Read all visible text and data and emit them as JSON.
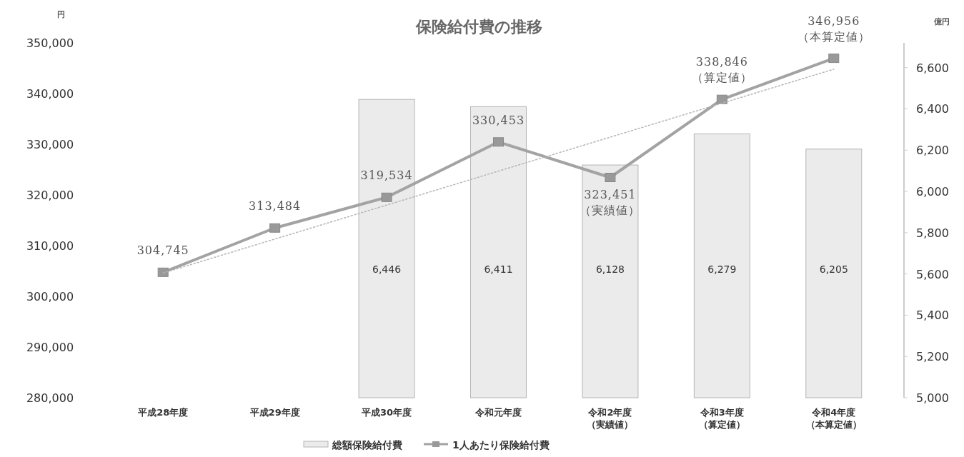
{
  "chart_data": {
    "type": "bar",
    "title": "保険給付費の推移",
    "ylabel": "円",
    "y2label": "億円",
    "categories": [
      "平成28年度",
      "平成29年度",
      "平成30年度",
      "令和元年度",
      "令和2年度（実績値）",
      "令和3年度（算定値）",
      "令和4年度（本算定値）"
    ],
    "series": [
      {
        "name": "総額保険給付費",
        "axis": "y2",
        "color": "#ebebeb",
        "values": [
          null,
          null,
          6446,
          6411,
          6128,
          6279,
          6205
        ],
        "value_labels": [
          null,
          null,
          "6,446",
          "6,411",
          "6,128",
          "6,279",
          "6,205"
        ]
      },
      {
        "name": "1人あたり保険給付費",
        "type": "line",
        "axis": "y",
        "color": "#a3a3a3",
        "marker": "square",
        "line_style": "solid",
        "values": [
          304745,
          313484,
          319534,
          330453,
          323451,
          338846,
          346956
        ],
        "value_labels": [
          "304,745",
          "313,484",
          "319,534",
          "330,453",
          "323,451（実績値）",
          "338,846（算定値）",
          "346,956（本算定値）"
        ]
      },
      {
        "type": "line",
        "axis": "y",
        "color": "#b5b5b5",
        "marker": "none",
        "line_style": "dotted",
        "values": [
          304600,
          311300,
          318000,
          324700,
          331400,
          338100,
          344800
        ]
      }
    ],
    "ylim": [
      280000,
      350000
    ],
    "yticks": [
      {
        "value": 280000,
        "label": "280,000"
      },
      {
        "value": 290000,
        "label": "290,000"
      },
      {
        "value": 300000,
        "label": "300,000"
      },
      {
        "value": 310000,
        "label": "310,000"
      },
      {
        "value": 320000,
        "label": "320,000"
      },
      {
        "value": 330000,
        "label": "330,000"
      },
      {
        "value": 340000,
        "label": "340,000"
      },
      {
        "value": 350000,
        "label": "350,000"
      }
    ],
    "y2lim": [
      5000,
      6720
    ],
    "y2ticks": [
      {
        "value": 5000,
        "label": "5,000"
      },
      {
        "value": 5200,
        "label": "5,200"
      },
      {
        "value": 5400,
        "label": "5,400"
      },
      {
        "value": 5600,
        "label": "5,600"
      },
      {
        "value": 5800,
        "label": "5,800"
      },
      {
        "value": 6000,
        "label": "6,000"
      },
      {
        "value": 6200,
        "label": "6,200"
      },
      {
        "value": 6400,
        "label": "6,400"
      },
      {
        "value": 6600,
        "label": "6,600"
      }
    ],
    "grid": false,
    "legend": "bottom"
  }
}
